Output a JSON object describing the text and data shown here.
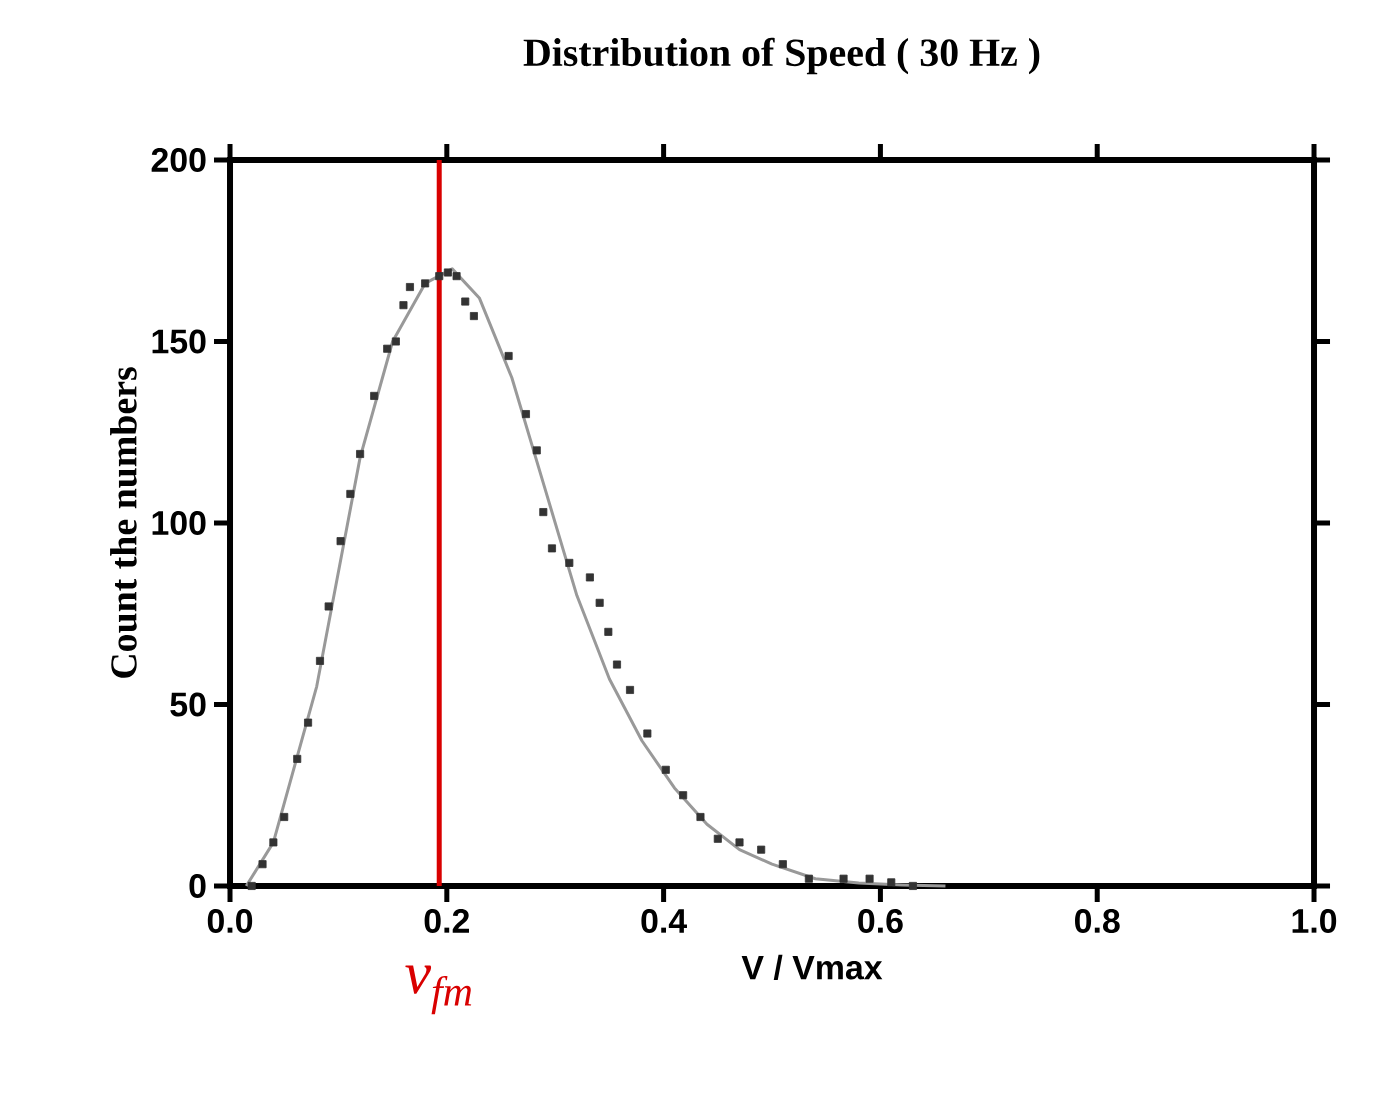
{
  "chart_data": {
    "type": "scatter",
    "title": "Distribution of Speed ( 30 Hz )",
    "xlabel": "V / Vmax",
    "ylabel": "Count the numbers",
    "xlim": [
      0,
      1
    ],
    "ylim": [
      0,
      200
    ],
    "xticks": [
      {
        "value": 0,
        "label": "0.0"
      },
      0.2,
      0.4,
      0.6,
      0.8,
      {
        "value": 1,
        "label": "1.0"
      }
    ],
    "yticks": [
      0,
      50,
      100,
      150,
      200
    ],
    "marker": "square",
    "grid": false,
    "ref_lines": [
      {
        "axis": "x",
        "value": 0.193,
        "label": "v$_{fm}$",
        "color": "#d90000"
      }
    ],
    "series": [
      {
        "color": "#333333",
        "x": [
          0.02,
          0.03,
          0.04,
          0.05,
          0.062,
          0.072,
          0.083,
          0.091,
          0.102,
          0.111,
          0.12,
          0.133,
          0.145,
          0.153,
          0.16,
          0.166,
          0.18,
          0.193,
          0.201,
          0.209,
          0.217,
          0.225,
          0.257,
          0.273,
          0.283,
          0.289,
          0.297,
          0.313,
          0.332,
          0.341,
          0.349,
          0.357,
          0.369,
          0.385,
          0.402,
          0.418,
          0.434,
          0.45,
          0.47,
          0.49,
          0.51,
          0.534,
          0.566,
          0.59,
          0.61,
          0.63
        ],
        "values": [
          0,
          6,
          12,
          19,
          35,
          45,
          62,
          77,
          95,
          108,
          119,
          135,
          148,
          150,
          160,
          165,
          166,
          168,
          169,
          168,
          161,
          157,
          146,
          130,
          120,
          103,
          93,
          89,
          85,
          78,
          70,
          61,
          54,
          42,
          32,
          25,
          19,
          13,
          12,
          10,
          6,
          2,
          2,
          2,
          1,
          0
        ]
      },
      {
        "type": "line",
        "color": "#999999",
        "marker": "none",
        "x": [
          0.015,
          0.04,
          0.08,
          0.12,
          0.15,
          0.18,
          0.205,
          0.23,
          0.26,
          0.29,
          0.32,
          0.35,
          0.38,
          0.41,
          0.44,
          0.47,
          0.5,
          0.54,
          0.58,
          0.62,
          0.66
        ],
        "values": [
          0,
          12,
          55,
          118,
          150,
          166,
          170,
          162,
          140,
          110,
          80,
          57,
          40,
          27,
          17,
          10,
          6,
          2,
          0.8,
          0.3,
          0
        ]
      }
    ]
  }
}
